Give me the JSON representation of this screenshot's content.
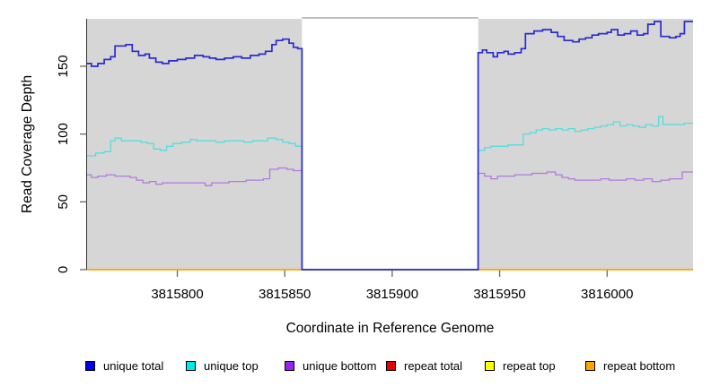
{
  "figure": {
    "background": "#ffffff",
    "panel_shade_color": "#d6d6d6",
    "masked_region_fill": "#ffffff",
    "masked_region_border": "#999999",
    "axis_color": "#333333",
    "tick_color": "#666666"
  },
  "chart_data": {
    "type": "line",
    "subtype": "step",
    "title": "",
    "xlabel": "Coordinate in Reference Genome",
    "ylabel": "Read Coverage Depth",
    "xlim": [
      3815758,
      3816040
    ],
    "ylim": [
      0,
      185
    ],
    "xticks": [
      3815800,
      3815850,
      3815900,
      3815950,
      3816000
    ],
    "yticks": [
      0,
      50,
      100,
      150
    ],
    "grid": false,
    "legend_position": "bottom",
    "shaded_regions": [
      [
        3815758,
        3815858
      ],
      [
        3815940,
        3816040
      ]
    ],
    "masked_region": {
      "start": 3815858,
      "end": 3815940,
      "note": "all series drop to 0 in this white band"
    },
    "series": [
      {
        "name": "unique total",
        "color": "#2b2bd0",
        "swatch": "#0000e6",
        "width": 1.7,
        "points": [
          [
            3815758,
            152
          ],
          [
            3815760,
            150
          ],
          [
            3815763,
            152
          ],
          [
            3815766,
            155
          ],
          [
            3815769,
            157
          ],
          [
            3815771,
            165
          ],
          [
            3815776,
            166
          ],
          [
            3815779,
            161
          ],
          [
            3815782,
            158
          ],
          [
            3815785,
            159
          ],
          [
            3815787,
            156
          ],
          [
            3815790,
            153
          ],
          [
            3815793,
            152
          ],
          [
            3815796,
            154
          ],
          [
            3815800,
            155
          ],
          [
            3815804,
            156
          ],
          [
            3815808,
            158
          ],
          [
            3815812,
            157
          ],
          [
            3815815,
            156
          ],
          [
            3815818,
            155
          ],
          [
            3815822,
            156
          ],
          [
            3815826,
            157
          ],
          [
            3815830,
            156
          ],
          [
            3815834,
            158
          ],
          [
            3815838,
            159
          ],
          [
            3815841,
            161
          ],
          [
            3815844,
            166
          ],
          [
            3815846,
            169
          ],
          [
            3815849,
            170
          ],
          [
            3815852,
            167
          ],
          [
            3815854,
            164
          ],
          [
            3815856,
            163
          ],
          [
            3815858,
            0
          ],
          [
            3815940,
            160
          ],
          [
            3815942,
            162
          ],
          [
            3815944,
            160
          ],
          [
            3815947,
            157
          ],
          [
            3815949,
            160
          ],
          [
            3815952,
            161
          ],
          [
            3815954,
            159
          ],
          [
            3815957,
            160
          ],
          [
            3815960,
            163
          ],
          [
            3815962,
            174
          ],
          [
            3815966,
            176
          ],
          [
            3815970,
            177
          ],
          [
            3815974,
            175
          ],
          [
            3815977,
            172
          ],
          [
            3815980,
            169
          ],
          [
            3815984,
            168
          ],
          [
            3815987,
            170
          ],
          [
            3815990,
            171
          ],
          [
            3815993,
            173
          ],
          [
            3815996,
            174
          ],
          [
            3816000,
            175
          ],
          [
            3816002,
            177
          ],
          [
            3816005,
            173
          ],
          [
            3816008,
            174
          ],
          [
            3816011,
            176
          ],
          [
            3816014,
            173
          ],
          [
            3816017,
            174
          ],
          [
            3816019,
            181
          ],
          [
            3816022,
            183
          ],
          [
            3816025,
            172
          ],
          [
            3816029,
            171
          ],
          [
            3816032,
            172
          ],
          [
            3816034,
            174
          ],
          [
            3816036,
            183
          ]
        ]
      },
      {
        "name": "unique top",
        "color": "#58dcdc",
        "swatch": "#00eaea",
        "width": 1.3,
        "points": [
          [
            3815758,
            84
          ],
          [
            3815762,
            86
          ],
          [
            3815766,
            87
          ],
          [
            3815769,
            95
          ],
          [
            3815771,
            97
          ],
          [
            3815774,
            95
          ],
          [
            3815780,
            95
          ],
          [
            3815783,
            94
          ],
          [
            3815786,
            93
          ],
          [
            3815789,
            89
          ],
          [
            3815792,
            88
          ],
          [
            3815795,
            91
          ],
          [
            3815798,
            93
          ],
          [
            3815802,
            94
          ],
          [
            3815806,
            96
          ],
          [
            3815809,
            95
          ],
          [
            3815813,
            95
          ],
          [
            3815818,
            94
          ],
          [
            3815822,
            95
          ],
          [
            3815827,
            95
          ],
          [
            3815831,
            94
          ],
          [
            3815835,
            95
          ],
          [
            3815839,
            95
          ],
          [
            3815842,
            97
          ],
          [
            3815846,
            96
          ],
          [
            3815849,
            94
          ],
          [
            3815852,
            93
          ],
          [
            3815855,
            91
          ],
          [
            3815858,
            0
          ],
          [
            3815940,
            88
          ],
          [
            3815943,
            90
          ],
          [
            3815946,
            91
          ],
          [
            3815950,
            91
          ],
          [
            3815954,
            92
          ],
          [
            3815958,
            92
          ],
          [
            3815961,
            100
          ],
          [
            3815964,
            101
          ],
          [
            3815967,
            103
          ],
          [
            3815970,
            104
          ],
          [
            3815973,
            103
          ],
          [
            3815976,
            104
          ],
          [
            3815979,
            103
          ],
          [
            3815982,
            104
          ],
          [
            3815985,
            102
          ],
          [
            3815988,
            103
          ],
          [
            3815991,
            104
          ],
          [
            3815994,
            105
          ],
          [
            3815997,
            106
          ],
          [
            3816000,
            107
          ],
          [
            3816003,
            109
          ],
          [
            3816006,
            106
          ],
          [
            3816009,
            107
          ],
          [
            3816012,
            106
          ],
          [
            3816015,
            105
          ],
          [
            3816018,
            107
          ],
          [
            3816021,
            106
          ],
          [
            3816024,
            113
          ],
          [
            3816026,
            107
          ],
          [
            3816030,
            107
          ],
          [
            3816033,
            107
          ],
          [
            3816036,
            108
          ]
        ]
      },
      {
        "name": "unique bottom",
        "color": "#af7be0",
        "swatch": "#a020f0",
        "width": 1.3,
        "points": [
          [
            3815758,
            70
          ],
          [
            3815760,
            68
          ],
          [
            3815763,
            69
          ],
          [
            3815767,
            70
          ],
          [
            3815771,
            69
          ],
          [
            3815775,
            69
          ],
          [
            3815778,
            68
          ],
          [
            3815781,
            66
          ],
          [
            3815784,
            64
          ],
          [
            3815787,
            65
          ],
          [
            3815790,
            63
          ],
          [
            3815793,
            64
          ],
          [
            3815797,
            64
          ],
          [
            3815801,
            64
          ],
          [
            3815805,
            64
          ],
          [
            3815809,
            64
          ],
          [
            3815813,
            62
          ],
          [
            3815816,
            64
          ],
          [
            3815820,
            64
          ],
          [
            3815824,
            65
          ],
          [
            3815828,
            65
          ],
          [
            3815832,
            66
          ],
          [
            3815836,
            66
          ],
          [
            3815840,
            67
          ],
          [
            3815843,
            74
          ],
          [
            3815847,
            75
          ],
          [
            3815851,
            74
          ],
          [
            3815854,
            73
          ],
          [
            3815858,
            0
          ],
          [
            3815940,
            71
          ],
          [
            3815943,
            69
          ],
          [
            3815946,
            67
          ],
          [
            3815949,
            69
          ],
          [
            3815953,
            69
          ],
          [
            3815957,
            70
          ],
          [
            3815961,
            70
          ],
          [
            3815965,
            71
          ],
          [
            3815969,
            71
          ],
          [
            3815972,
            72
          ],
          [
            3815976,
            70
          ],
          [
            3815979,
            68
          ],
          [
            3815982,
            67
          ],
          [
            3815985,
            66
          ],
          [
            3815989,
            66
          ],
          [
            3815993,
            66
          ],
          [
            3815997,
            67
          ],
          [
            3816001,
            66
          ],
          [
            3816005,
            66
          ],
          [
            3816009,
            67
          ],
          [
            3816013,
            66
          ],
          [
            3816017,
            67
          ],
          [
            3816021,
            65
          ],
          [
            3816025,
            66
          ],
          [
            3816029,
            67
          ],
          [
            3816033,
            67
          ],
          [
            3816035,
            72
          ]
        ]
      },
      {
        "name": "repeat total",
        "color": "#e60000",
        "swatch": "#e60000",
        "width": 1.3,
        "points": [
          [
            3815758,
            0
          ],
          [
            3816040,
            0
          ]
        ]
      },
      {
        "name": "repeat top",
        "color": "#f5f500",
        "swatch": "#ffff00",
        "width": 1.3,
        "points": [
          [
            3815758,
            0
          ],
          [
            3816040,
            0
          ]
        ]
      },
      {
        "name": "repeat bottom",
        "color": "#ffa500",
        "swatch": "#ffa500",
        "width": 1.6,
        "points": [
          [
            3815758,
            0
          ],
          [
            3816040,
            0
          ]
        ]
      }
    ]
  }
}
